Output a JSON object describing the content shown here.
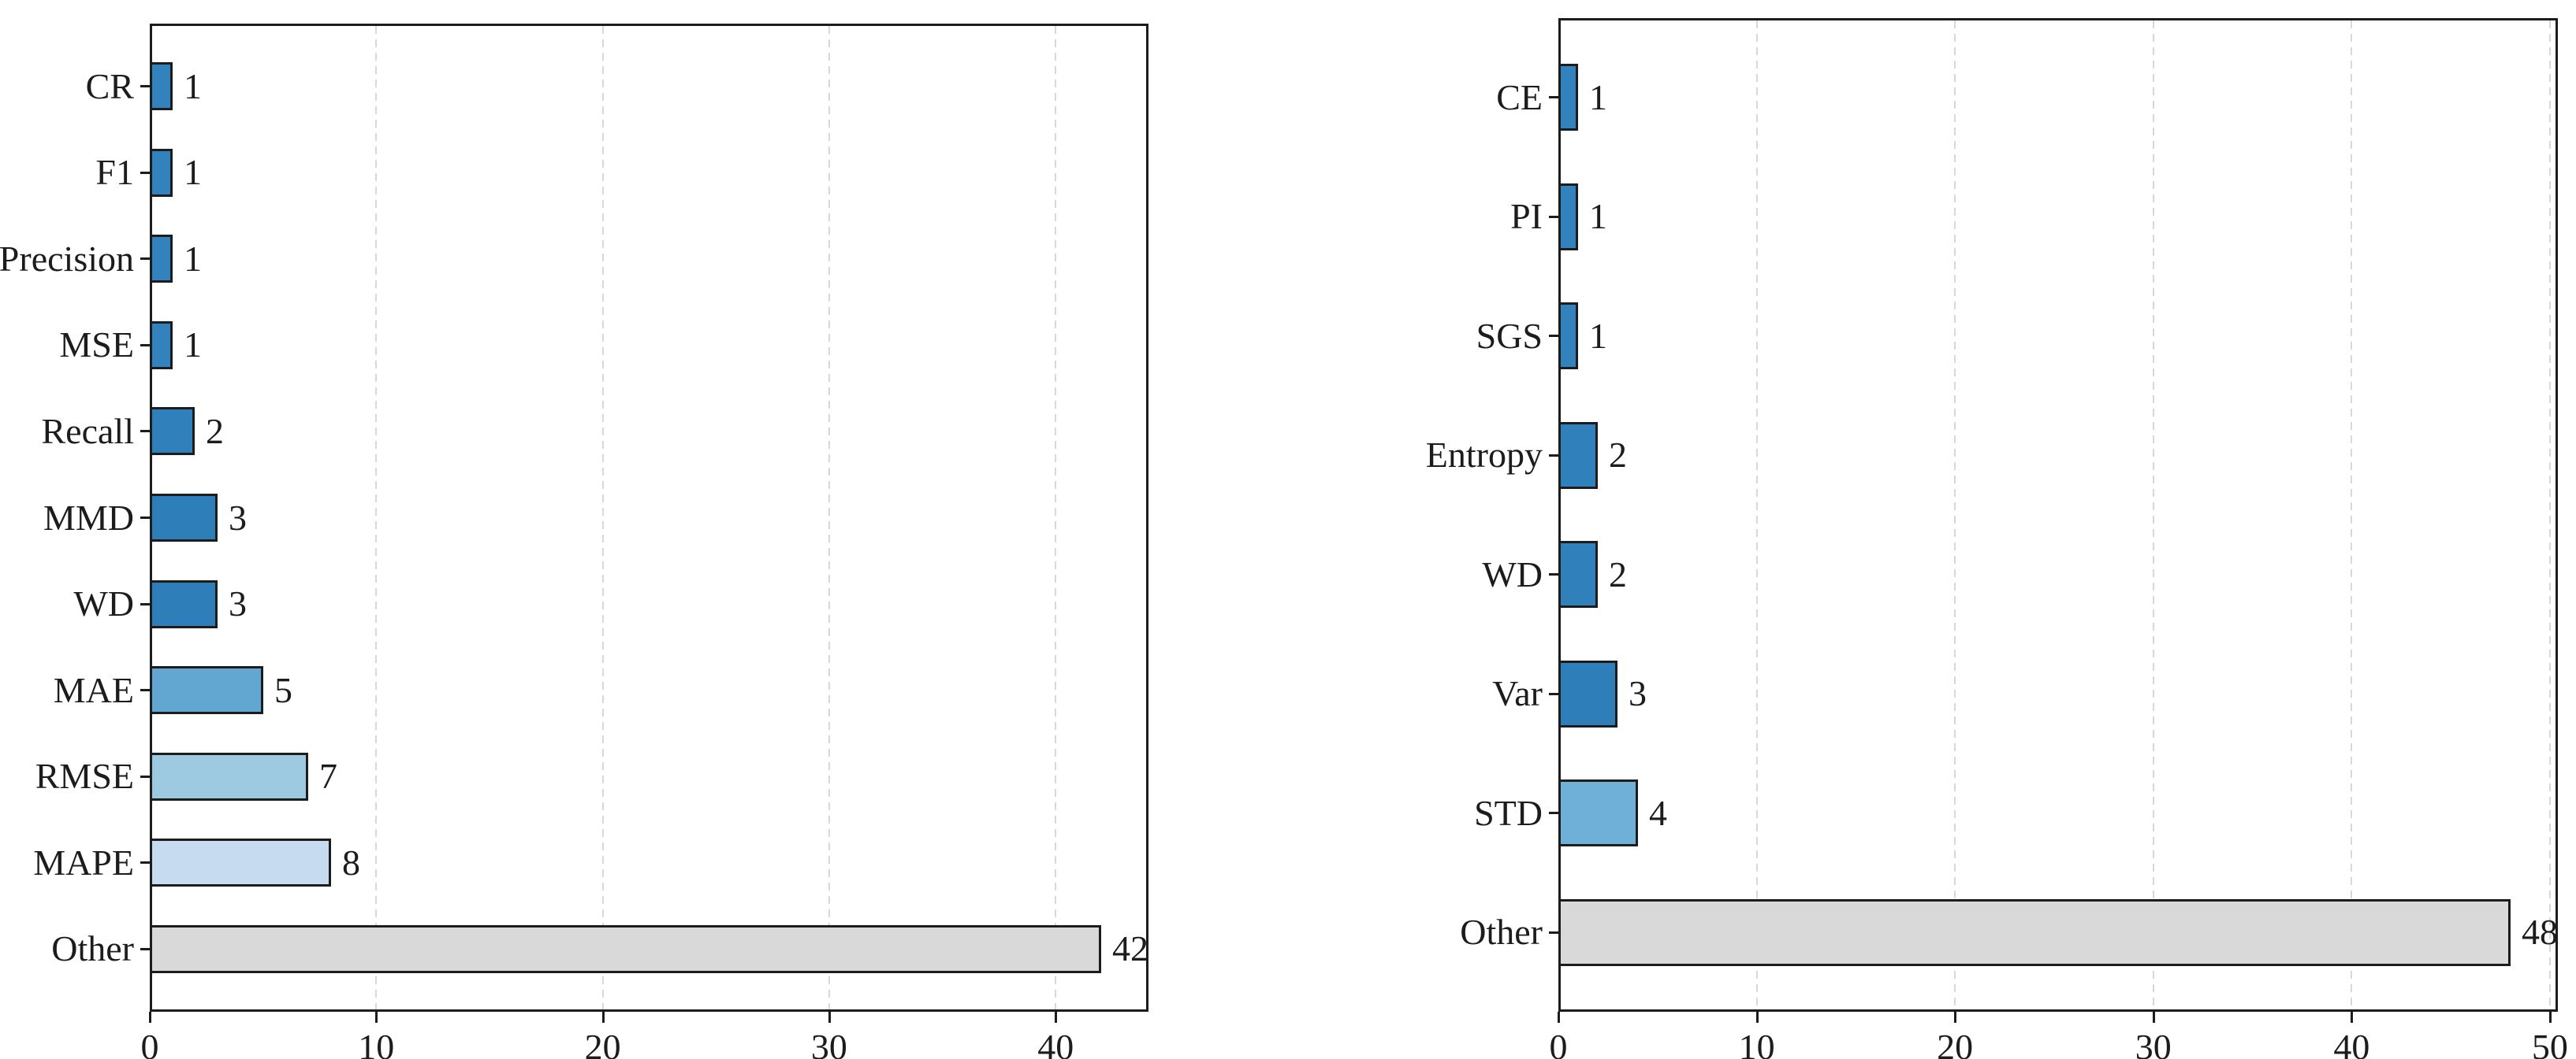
{
  "style": {
    "background": "#ffffff",
    "bar_edge_color": "#1c1c1c",
    "grid_color": "#d8d8d8",
    "text_color": "#1c1c1c",
    "axis_color": "#1c1c1c",
    "other_bar_color": "#d9d9d9"
  },
  "chart_data": [
    {
      "type": "bar",
      "orientation": "horizontal",
      "title": "",
      "xlabel": "",
      "ylabel": "",
      "categories": [
        "CR",
        "F1",
        "Precision",
        "MSE",
        "Recall",
        "MMD",
        "WD",
        "MAE",
        "RMSE",
        "MAPE",
        "Other"
      ],
      "values": [
        1,
        1,
        1,
        1,
        2,
        3,
        3,
        5,
        7,
        8,
        42
      ],
      "value_labels": [
        "1",
        "1",
        "1",
        "1",
        "2",
        "3",
        "3",
        "5",
        "7",
        "8",
        "42"
      ],
      "bar_colors": [
        "#3282be",
        "#3282be",
        "#3282be",
        "#3282be",
        "#3080bc",
        "#2e7eba",
        "#2e7eba",
        "#61a7d2",
        "#9ecae1",
        "#c6dbef",
        "#d9d9d9"
      ],
      "xlim": [
        0,
        44.1
      ],
      "xticks": [
        "0",
        "10",
        "20",
        "30",
        "40"
      ],
      "grid": "vertical-dashed",
      "legend": null
    },
    {
      "type": "bar",
      "orientation": "horizontal",
      "title": "",
      "xlabel": "",
      "ylabel": "",
      "categories": [
        "CE",
        "PI",
        "SGS",
        "Entropy",
        "WD",
        "Var",
        "STD",
        "Other"
      ],
      "values": [
        1,
        1,
        1,
        2,
        2,
        3,
        4,
        48
      ],
      "value_labels": [
        "1",
        "1",
        "1",
        "2",
        "2",
        "3",
        "4",
        "48"
      ],
      "bar_colors": [
        "#3282be",
        "#3282be",
        "#3282be",
        "#3080bc",
        "#3080bc",
        "#2e7eba",
        "#6fb0d9",
        "#d9d9d9"
      ],
      "xlim": [
        0,
        50.4
      ],
      "xticks": [
        "0",
        "10",
        "20",
        "30",
        "40",
        "50"
      ],
      "grid": "vertical-dashed",
      "legend": null
    }
  ]
}
